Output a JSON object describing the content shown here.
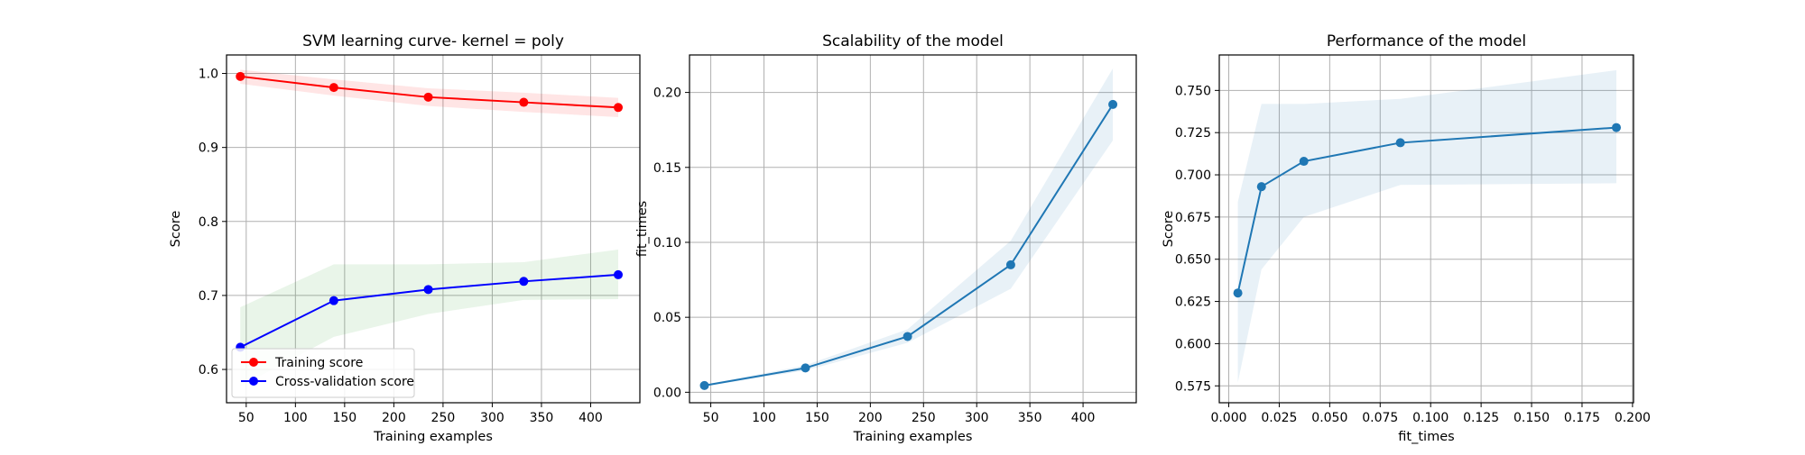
{
  "chart_data": [
    {
      "type": "line",
      "title": "SVM learning curve- kernel = poly",
      "xlabel": "Training examples",
      "ylabel": "Score",
      "xlim": [
        30,
        450
      ],
      "ylim": [
        0.555,
        1.025
      ],
      "xticks": [
        50,
        100,
        150,
        200,
        250,
        300,
        350,
        400
      ],
      "yticks": [
        0.6,
        0.7,
        0.8,
        0.9,
        1.0
      ],
      "ytick_labels": [
        "0.6",
        "0.7",
        "0.8",
        "0.9",
        "1.0"
      ],
      "grid": true,
      "legend": "lower-left",
      "series": [
        {
          "name": "Training score",
          "color": "#ff0000",
          "band_color": "#ff0000",
          "x": [
            44,
            139,
            235,
            332,
            428
          ],
          "y": [
            0.996,
            0.981,
            0.968,
            0.961,
            0.954
          ],
          "lower": [
            0.986,
            0.97,
            0.956,
            0.948,
            0.941
          ],
          "upper": [
            1.005,
            0.992,
            0.98,
            0.974,
            0.967
          ]
        },
        {
          "name": "Cross-validation score",
          "color": "#0000ff",
          "band_color": "#2ca02c",
          "x": [
            44,
            139,
            235,
            332,
            428
          ],
          "y": [
            0.63,
            0.693,
            0.708,
            0.719,
            0.728
          ],
          "lower": [
            0.577,
            0.644,
            0.675,
            0.694,
            0.695
          ],
          "upper": [
            0.684,
            0.742,
            0.742,
            0.745,
            0.762
          ]
        }
      ]
    },
    {
      "type": "line",
      "title": "Scalability of the model",
      "xlabel": "Training examples",
      "ylabel": "fit_times",
      "xlim": [
        30,
        450
      ],
      "ylim": [
        -0.007,
        0.225
      ],
      "xticks": [
        50,
        100,
        150,
        200,
        250,
        300,
        350,
        400
      ],
      "yticks": [
        0.0,
        0.05,
        0.1,
        0.15,
        0.2
      ],
      "ytick_labels": [
        "0.00",
        "0.05",
        "0.10",
        "0.15",
        "0.20"
      ],
      "grid": true,
      "series": [
        {
          "color": "#1f77b4",
          "band_color": "#1f77b4",
          "x": [
            44,
            139,
            235,
            332,
            428
          ],
          "y": [
            0.0045,
            0.0162,
            0.0372,
            0.085,
            0.192
          ],
          "lower": [
            0.004,
            0.0145,
            0.033,
            0.069,
            0.168
          ],
          "upper": [
            0.005,
            0.018,
            0.042,
            0.101,
            0.216
          ]
        }
      ]
    },
    {
      "type": "line",
      "title": "Performance of the model",
      "xlabel": "fit_times",
      "ylabel": "Score",
      "xlim": [
        -0.0047,
        0.2005
      ],
      "ylim": [
        0.565,
        0.771
      ],
      "xticks": [
        0.0,
        0.025,
        0.05,
        0.075,
        0.1,
        0.125,
        0.15,
        0.175,
        0.2
      ],
      "xtick_labels": [
        "0.000",
        "0.025",
        "0.050",
        "0.075",
        "0.100",
        "0.125",
        "0.150",
        "0.175",
        "0.200"
      ],
      "yticks": [
        0.575,
        0.6,
        0.625,
        0.65,
        0.675,
        0.7,
        0.725,
        0.75
      ],
      "ytick_labels": [
        "0.575",
        "0.600",
        "0.625",
        "0.650",
        "0.675",
        "0.700",
        "0.725",
        "0.750"
      ],
      "grid": true,
      "series": [
        {
          "color": "#1f77b4",
          "band_color": "#1f77b4",
          "x": [
            0.0045,
            0.0162,
            0.0372,
            0.085,
            0.192
          ],
          "y": [
            0.63,
            0.693,
            0.708,
            0.719,
            0.728
          ],
          "lower": [
            0.577,
            0.644,
            0.675,
            0.694,
            0.695
          ],
          "upper": [
            0.684,
            0.742,
            0.742,
            0.745,
            0.762
          ]
        }
      ]
    }
  ]
}
